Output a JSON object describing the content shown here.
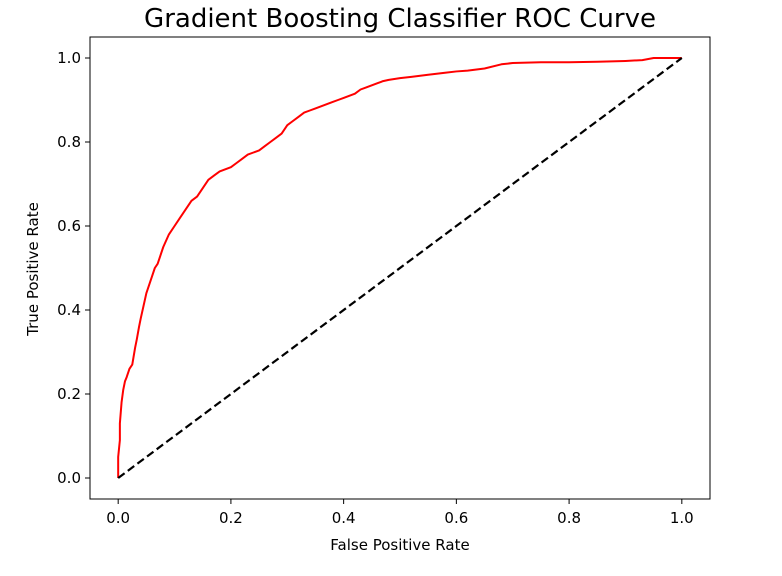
{
  "chart_data": {
    "type": "line",
    "title": "Gradient Boosting Classifier ROC Curve",
    "xlabel": "False Positive Rate",
    "ylabel": "True Positive Rate",
    "xlim": [
      -0.05,
      1.05
    ],
    "ylim": [
      -0.05,
      1.05
    ],
    "xticks": [
      0.0,
      0.2,
      0.4,
      0.6,
      0.8,
      1.0
    ],
    "xtick_labels": [
      "0.0",
      "0.2",
      "0.4",
      "0.6",
      "0.8",
      "1.0"
    ],
    "yticks": [
      0.0,
      0.2,
      0.4,
      0.6,
      0.8,
      1.0
    ],
    "ytick_labels": [
      "0.0",
      "0.2",
      "0.4",
      "0.6",
      "0.8",
      "1.0"
    ],
    "grid": false,
    "series": [
      {
        "style": "solid",
        "color": "#ff0000",
        "x": [
          0.0,
          0.0,
          0.003,
          0.003,
          0.006,
          0.009,
          0.012,
          0.015,
          0.02,
          0.025,
          0.03,
          0.033,
          0.037,
          0.04,
          0.045,
          0.05,
          0.055,
          0.06,
          0.065,
          0.07,
          0.075,
          0.08,
          0.09,
          0.1,
          0.11,
          0.12,
          0.13,
          0.14,
          0.15,
          0.16,
          0.17,
          0.18,
          0.19,
          0.2,
          0.21,
          0.22,
          0.23,
          0.24,
          0.25,
          0.26,
          0.27,
          0.28,
          0.29,
          0.3,
          0.31,
          0.32,
          0.33,
          0.34,
          0.35,
          0.36,
          0.37,
          0.38,
          0.39,
          0.4,
          0.41,
          0.42,
          0.43,
          0.44,
          0.45,
          0.46,
          0.47,
          0.48,
          0.5,
          0.52,
          0.55,
          0.58,
          0.6,
          0.62,
          0.65,
          0.68,
          0.7,
          0.75,
          0.8,
          0.85,
          0.9,
          0.93,
          0.95,
          1.0
        ],
        "y": [
          0.0,
          0.05,
          0.09,
          0.13,
          0.18,
          0.21,
          0.23,
          0.24,
          0.26,
          0.27,
          0.31,
          0.33,
          0.36,
          0.38,
          0.41,
          0.44,
          0.46,
          0.48,
          0.5,
          0.51,
          0.53,
          0.55,
          0.58,
          0.6,
          0.62,
          0.64,
          0.66,
          0.67,
          0.69,
          0.71,
          0.72,
          0.73,
          0.735,
          0.74,
          0.75,
          0.76,
          0.77,
          0.775,
          0.78,
          0.79,
          0.8,
          0.81,
          0.82,
          0.84,
          0.85,
          0.86,
          0.87,
          0.875,
          0.88,
          0.885,
          0.89,
          0.895,
          0.9,
          0.905,
          0.91,
          0.915,
          0.925,
          0.93,
          0.935,
          0.94,
          0.945,
          0.948,
          0.952,
          0.955,
          0.96,
          0.965,
          0.968,
          0.97,
          0.975,
          0.985,
          0.988,
          0.99,
          0.99,
          0.991,
          0.993,
          0.995,
          1.0,
          1.0
        ]
      },
      {
        "style": "dashed",
        "color": "#000000",
        "x": [
          0.0,
          1.0
        ],
        "y": [
          0.0,
          1.0
        ]
      }
    ]
  }
}
